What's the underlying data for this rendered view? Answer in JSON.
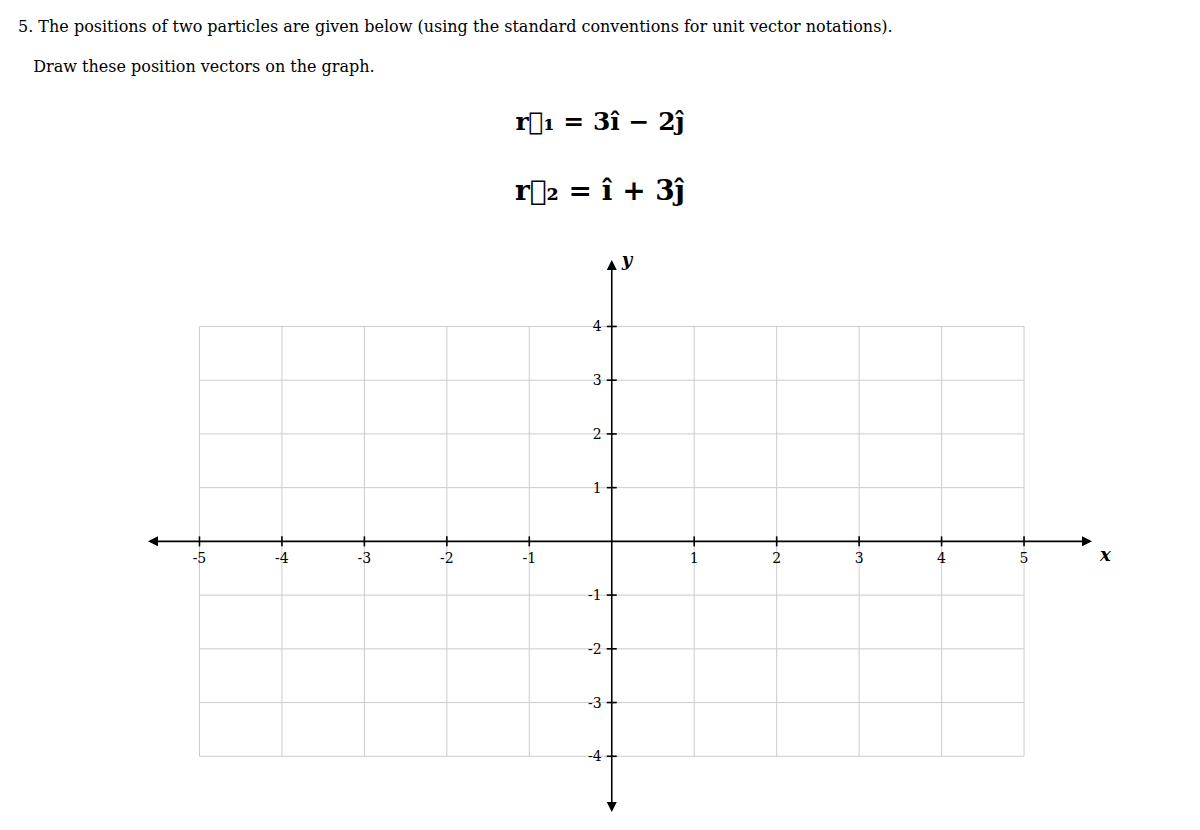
{
  "chart_data": {
    "type": "coordinate_plane",
    "title": "5. The positions of two particles are given below (using the standard conventions for unit vector notations).",
    "subtitle": "   Draw these position vectors on the graph.",
    "annotations": [
      "r⃗₁ = 3î − 2ĵ",
      "r⃗₂ = î + 3ĵ"
    ],
    "x_label": "x",
    "y_label": "y",
    "xlim": [
      -5.6,
      5.8
    ],
    "ylim": [
      -5.0,
      5.2
    ],
    "xticks": [
      -5,
      -4,
      -3,
      -2,
      -1,
      1,
      2,
      3,
      4,
      5
    ],
    "yticks": [
      -4,
      -3,
      -2,
      -1,
      1,
      2,
      3,
      4
    ],
    "grid": true
  }
}
